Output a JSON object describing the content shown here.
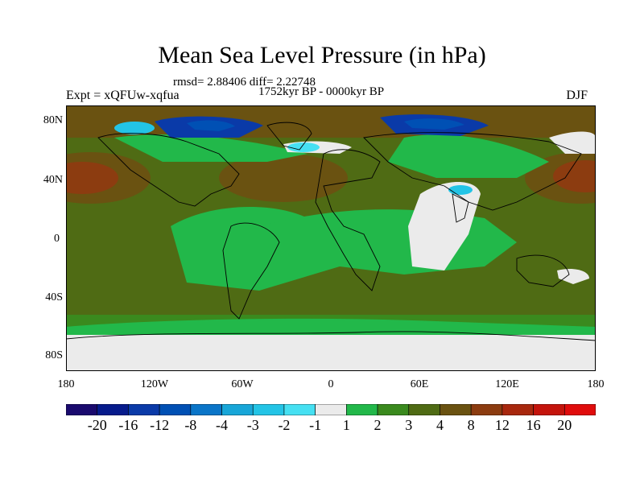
{
  "figure": {
    "title": "Mean Sea Level Pressure (in hPa)",
    "stats": "rmsd= 2.88406 diff= 2.22748",
    "period": "1752kyr BP - 0000kyr BP",
    "experiment": "Expt = xQFUw-xqfua",
    "season": "DJF"
  },
  "axes": {
    "lat_ticks": [
      "80N",
      "40N",
      "0",
      "40S",
      "80S"
    ],
    "lon_ticks": [
      "180",
      "120W",
      "60W",
      "0",
      "60E",
      "120E",
      "180"
    ]
  },
  "colorbar": {
    "labels": [
      "-20",
      "-16",
      "-12",
      "-8",
      "-4",
      "-3",
      "-2",
      "-1",
      "1",
      "2",
      "3",
      "4",
      "8",
      "12",
      "16",
      "20"
    ],
    "colors": [
      "#1a0a6e",
      "#061b8c",
      "#0a3aa8",
      "#0050b4",
      "#0a75c8",
      "#18a6d8",
      "#23c4e6",
      "#46e0f2",
      "#ebebeb",
      "#22b84a",
      "#3a8a1e",
      "#4f6b14",
      "#6a5211",
      "#8c3c10",
      "#a8280e",
      "#c4140c",
      "#e00c0c"
    ]
  },
  "legend_colors": {
    "green_2": "#22b84a",
    "olive_3": "#3a8a1e",
    "brown_8": "#8c3c10",
    "white_neutral": "#ebebeb",
    "blue_neg": "#0a3aa8",
    "cyan_neg": "#23c4e6"
  }
}
